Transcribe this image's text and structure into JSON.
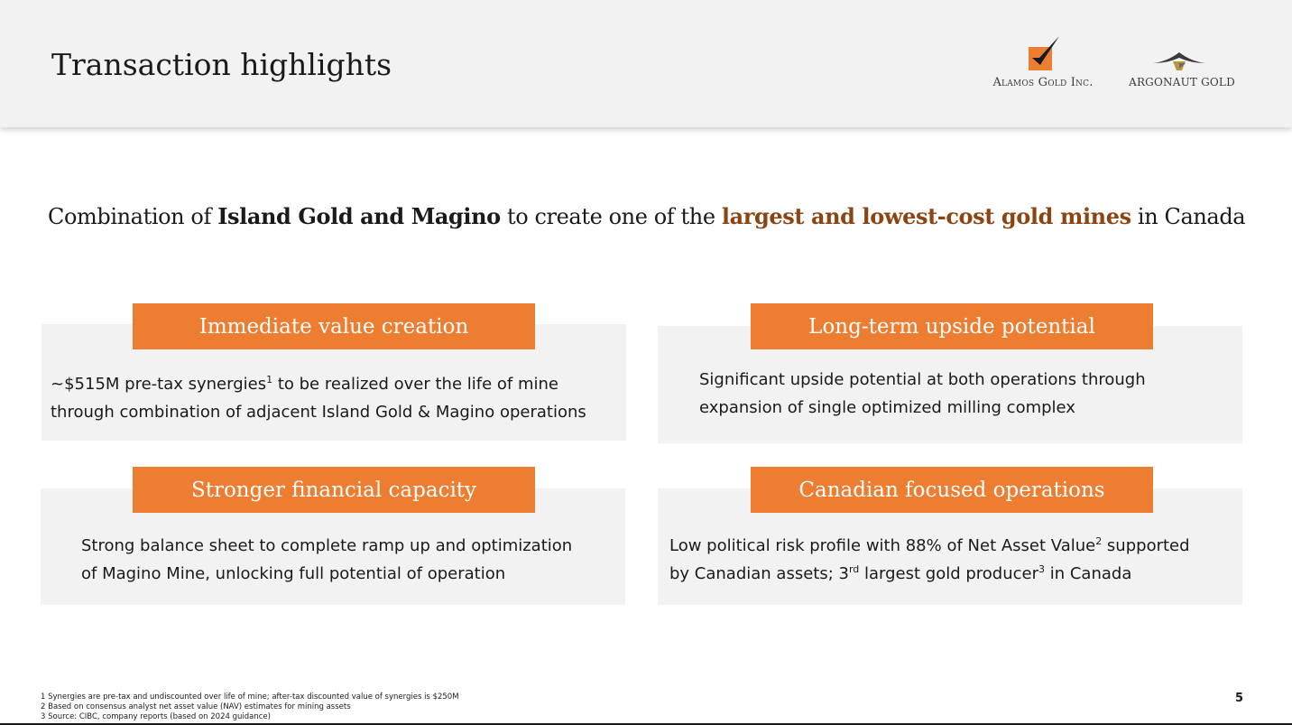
{
  "header": {
    "title": "Transaction highlights",
    "logos": [
      {
        "name": "Alamos Gold Inc.",
        "text": "Alamos Gold Inc.",
        "icon": "alamos-checkmark-icon"
      },
      {
        "name": "Argonaut Gold",
        "text": "Argonaut Gold",
        "icon": "argonaut-ship-icon"
      }
    ]
  },
  "headline": {
    "part1": "Combination of ",
    "bold": "Island Gold and Magino",
    "part2": " to create one of the ",
    "accent": "largest and lowest-cost gold mines",
    "part3": " in Canada"
  },
  "panels": [
    {
      "title": "Immediate value creation",
      "line1_a": "~$515M pre-tax synergies",
      "line1_sup": "1",
      "line1_b": " to be realized over the life of mine",
      "line2": "through combination of adjacent Island Gold & Magino operations"
    },
    {
      "title": "Long-term upside potential",
      "line1": "Significant upside potential at both operations through",
      "line2": "expansion of single optimized milling complex"
    },
    {
      "title": "Stronger financial capacity",
      "line1": "Strong balance sheet to complete ramp up and optimization",
      "line2": "of Magino Mine, unlocking full potential of operation"
    },
    {
      "title": "Canadian focused operations",
      "line1_a": "Low political risk profile with 88% of Net Asset Value",
      "line1_sup": "2",
      "line1_b": " supported",
      "line2_a": "by Canadian assets; 3",
      "line2_sup1": "rd",
      "line2_b": " largest gold producer",
      "line2_sup2": "3",
      "line2_c": " in Canada"
    }
  ],
  "footnotes": [
    "1  Synergies are pre-tax and undiscounted over life of mine; after-tax discounted value of synergies is $250M",
    "2  Based on consensus analyst net asset value (NAV) estimates for mining assets",
    "3  Source: CIBC, company reports (based on 2024 guidance)"
  ],
  "page_number": "5",
  "colors": {
    "accent_orange": "#ed7d31",
    "accent_brown": "#8b4513",
    "panel_gray": "#f2f2f2"
  }
}
